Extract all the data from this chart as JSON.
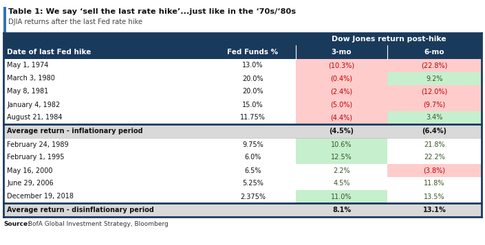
{
  "title": "Table 1: We say ‘sell the last rate hike’...just like in the ‘70s/‘80s",
  "subtitle": "DJIA returns after the last Fed rate hike",
  "header_bg": "#1a3a5c",
  "header_text": "#ffffff",
  "col_header": [
    "Date of last Fed hike",
    "Fed Funds %",
    "3-mo",
    "6-mo"
  ],
  "col_span_label": "Dow Jones return post-hike",
  "rows": [
    {
      "date": "May 1, 1974",
      "fed": "13.0%",
      "mo3": "(10.3%)",
      "mo6": "(22.8%)",
      "mo3_bg": "red",
      "mo6_bg": "red"
    },
    {
      "date": "March 3, 1980",
      "fed": "20.0%",
      "mo3": "(0.4%)",
      "mo6": "9.2%",
      "mo3_bg": "red",
      "mo6_bg": "green"
    },
    {
      "date": "May 8, 1981",
      "fed": "20.0%",
      "mo3": "(2.4%)",
      "mo6": "(12.0%)",
      "mo3_bg": "red",
      "mo6_bg": "red"
    },
    {
      "date": "January 4, 1982",
      "fed": "15.0%",
      "mo3": "(5.0%)",
      "mo6": "(9.7%)",
      "mo3_bg": "red",
      "mo6_bg": "red"
    },
    {
      "date": "August 21, 1984",
      "fed": "11.75%",
      "mo3": "(4.4%)",
      "mo6": "3.4%",
      "mo3_bg": "red",
      "mo6_bg": "green"
    }
  ],
  "avg_inf": {
    "label": "Average return - inflationary period",
    "mo3": "(4.5%)",
    "mo6": "(6.4%)"
  },
  "rows2": [
    {
      "date": "February 24, 1989",
      "fed": "9.75%",
      "mo3": "10.6%",
      "mo6": "21.8%",
      "mo3_bg": "green",
      "mo6_bg": "none"
    },
    {
      "date": "February 1, 1995",
      "fed": "6.0%",
      "mo3": "12.5%",
      "mo6": "22.2%",
      "mo3_bg": "green",
      "mo6_bg": "none"
    },
    {
      "date": "May 16, 2000",
      "fed": "6.5%",
      "mo3": "2.2%",
      "mo6": "(3.8%)",
      "mo3_bg": "none",
      "mo6_bg": "red"
    },
    {
      "date": "June 29, 2006",
      "fed": "5.25%",
      "mo3": "4.5%",
      "mo6": "11.8%",
      "mo3_bg": "none",
      "mo6_bg": "none"
    },
    {
      "date": "December 19, 2018",
      "fed": "2.375%",
      "mo3": "11.0%",
      "mo6": "13.5%",
      "mo3_bg": "green",
      "mo6_bg": "none"
    }
  ],
  "avg_dis": {
    "label": "Average return - disinflationary period",
    "mo3": "8.1%",
    "mo6": "13.1%"
  },
  "source_bold": "Source:",
  "source_normal": " BofA Global Investment Strategy, Bloomberg",
  "red_bg": "#ffcccc",
  "green_bg": "#c6efce",
  "avg_bg": "#d9d9d9",
  "white_bg": "#ffffff",
  "border_color": "#1a3a5c",
  "title_bar_color": "#2e75b6",
  "text_color": "#111111",
  "neg_color": "#c00000",
  "pos_color": "#375623"
}
